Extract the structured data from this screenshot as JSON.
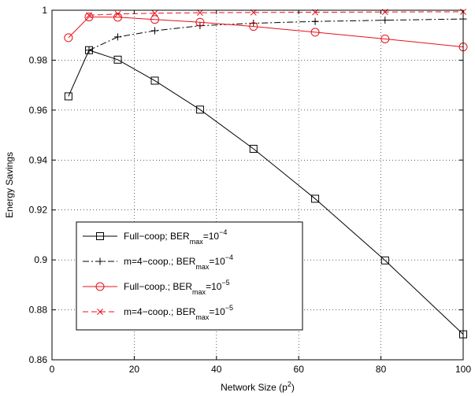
{
  "chart_data": {
    "type": "line",
    "title": "",
    "xlabel": "Network Size (p",
    "xlabel_sup": "2",
    "xlabel_end": ")",
    "ylabel": "Energy Savings",
    "xlim": [
      0,
      100
    ],
    "ylim": [
      0.86,
      1.0
    ],
    "xticks": [
      0,
      20,
      40,
      60,
      80,
      100
    ],
    "yticks": [
      0.86,
      0.88,
      0.9,
      0.92,
      0.94,
      0.96,
      0.98,
      1.0
    ],
    "xtick_labels": [
      "0",
      "20",
      "40",
      "60",
      "80",
      "100"
    ],
    "ytick_labels": [
      "0.86",
      "0.88",
      "0.9",
      "0.92",
      "0.94",
      "0.96",
      "0.98",
      "1"
    ],
    "grid": true,
    "legend_position": "bottom-left",
    "series": [
      {
        "name": "Full−coop; BER",
        "sub": "max",
        "eq": "=10",
        "sup": "−4",
        "color": "#000000",
        "line": "solid",
        "marker": "square",
        "x": [
          4,
          9,
          16,
          25,
          36,
          49,
          64,
          81,
          100
        ],
        "y": [
          0.9655,
          0.984,
          0.9802,
          0.9718,
          0.9602,
          0.9445,
          0.9245,
          0.8998,
          0.8702
        ]
      },
      {
        "name": "m=4−coop.; BER",
        "sub": "max",
        "eq": "=10",
        "sup": "−4",
        "color": "#000000",
        "line": "dashdot",
        "marker": "plus",
        "x": [
          9,
          16,
          25,
          36,
          49,
          64,
          81,
          100
        ],
        "y": [
          0.984,
          0.9893,
          0.9918,
          0.9938,
          0.9948,
          0.9955,
          0.996,
          0.9965
        ]
      },
      {
        "name": "Full−coop.; BER",
        "sub": "max",
        "eq": "=10",
        "sup": "−5",
        "color": "#e8101a",
        "line": "solid",
        "marker": "circle",
        "x": [
          4,
          9,
          16,
          25,
          36,
          49,
          64,
          81,
          100
        ],
        "y": [
          0.989,
          0.9973,
          0.9972,
          0.9963,
          0.9952,
          0.9935,
          0.9912,
          0.9885,
          0.9853
        ]
      },
      {
        "name": "m=4−coop.; BER",
        "sub": "max",
        "eq": "=10",
        "sup": "−5",
        "color": "#e8101a",
        "line": "dashed",
        "marker": "x",
        "x": [
          9,
          16,
          25,
          36,
          49,
          64,
          81,
          100
        ],
        "y": [
          0.998,
          0.9985,
          0.9988,
          0.999,
          0.9991,
          0.9992,
          0.9993,
          0.9994
        ]
      }
    ]
  }
}
